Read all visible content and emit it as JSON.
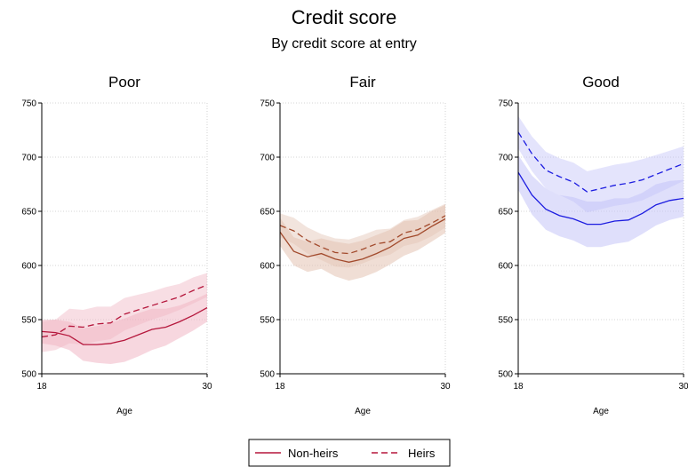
{
  "chart_data": {
    "type": "line",
    "title": "Credit score",
    "subtitle": "By credit score at entry",
    "xlabel": "Age",
    "xlim": [
      18,
      30
    ],
    "ylim": [
      500,
      750
    ],
    "x_ticks": [
      18,
      30
    ],
    "y_ticks": [
      500,
      550,
      600,
      650,
      700,
      750
    ],
    "grid": true,
    "legend": {
      "position": "bottom-center",
      "entries": [
        {
          "name": "Non-heirs",
          "style": "solid"
        },
        {
          "name": "Heirs",
          "style": "dashed"
        }
      ]
    },
    "x": [
      18,
      19,
      20,
      21,
      22,
      23,
      24,
      25,
      26,
      27,
      28,
      29,
      30
    ],
    "panels": [
      {
        "title": "Poor",
        "color": "#b5173c",
        "band_color": "#f0b6c4",
        "series": [
          {
            "name": "Non-heirs",
            "style": "solid",
            "values": [
              539,
              538,
              535,
              527,
              527,
              528,
              531,
              536,
              541,
              543,
              548,
              554,
              561
            ],
            "lower": [
              528,
              526,
              522,
              512,
              510,
              509,
              511,
              516,
              522,
              526,
              533,
              540,
              548
            ],
            "upper": [
              550,
              550,
              548,
              542,
              544,
              547,
              551,
              556,
              560,
              560,
              563,
              568,
              574
            ]
          },
          {
            "name": "Heirs",
            "style": "dashed",
            "values": [
              534,
              536,
              544,
              543,
              546,
              547,
              555,
              559,
              563,
              567,
              571,
              577,
              582
            ],
            "lower": [
              520,
              522,
              528,
              527,
              530,
              532,
              540,
              545,
              550,
              554,
              559,
              565,
              571
            ],
            "upper": [
              548,
              550,
              560,
              559,
              562,
              562,
              570,
              573,
              576,
              580,
              583,
              589,
              593
            ]
          }
        ]
      },
      {
        "title": "Fair",
        "color": "#a24a2c",
        "band_color": "#e3c3b3",
        "series": [
          {
            "name": "Non-heirs",
            "style": "solid",
            "values": [
              631,
              613,
              608,
              611,
              606,
              603,
              606,
              611,
              617,
              625,
              628,
              636,
              643
            ],
            "lower": [
              618,
              600,
              594,
              597,
              590,
              586,
              589,
              594,
              601,
              609,
              614,
              622,
              630
            ],
            "upper": [
              644,
              626,
              622,
              625,
              622,
              620,
              623,
              628,
              633,
              641,
              642,
              650,
              656
            ]
          },
          {
            "name": "Heirs",
            "style": "dashed",
            "values": [
              637,
              632,
              623,
              617,
              612,
              611,
              615,
              620,
              622,
              630,
              633,
              639,
              646
            ],
            "lower": [
              626,
              620,
              611,
              605,
              599,
              598,
              602,
              607,
              610,
              618,
              621,
              627,
              635
            ],
            "upper": [
              648,
              644,
              635,
              629,
              625,
              624,
              628,
              633,
              634,
              642,
              645,
              651,
              657
            ]
          }
        ]
      },
      {
        "title": "Good",
        "color": "#1c1ce0",
        "band_color": "#c4c4f8",
        "series": [
          {
            "name": "Non-heirs",
            "style": "solid",
            "values": [
              686,
              665,
              652,
              646,
              643,
              638,
              638,
              641,
              642,
              648,
              656,
              660,
              662
            ],
            "lower": [
              670,
              647,
              633,
              627,
              623,
              617,
              617,
              620,
              622,
              629,
              637,
              642,
              645
            ],
            "upper": [
              702,
              683,
              671,
              665,
              663,
              659,
              659,
              662,
              662,
              667,
              675,
              678,
              679
            ]
          },
          {
            "name": "Heirs",
            "style": "dashed",
            "values": [
              723,
              703,
              688,
              682,
              677,
              668,
              671,
              674,
              676,
              679,
              684,
              689,
              694
            ],
            "lower": [
              708,
              687,
              671,
              665,
              659,
              649,
              652,
              655,
              657,
              660,
              666,
              672,
              678
            ],
            "upper": [
              738,
              719,
              705,
              699,
              695,
              687,
              690,
              693,
              695,
              698,
              702,
              706,
              710
            ]
          }
        ]
      }
    ]
  }
}
